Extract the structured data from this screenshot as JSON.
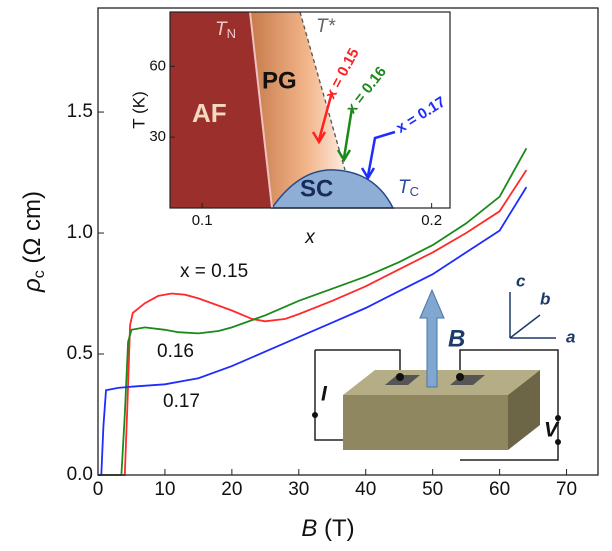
{
  "chart_data": [
    {
      "type": "line",
      "xlabel": [
        "B",
        " (T)"
      ],
      "ylabel": [
        "ρ",
        "c",
        " (Ω cm)"
      ],
      "xlim": [
        0,
        74.7
      ],
      "ylim": [
        0,
        1.93
      ],
      "xticks": [
        0,
        10,
        20,
        30,
        40,
        50,
        60,
        70
      ],
      "yticks": [
        {
          "value": 0,
          "label": "0.0"
        },
        0.5,
        {
          "value": 1,
          "label": "1.0"
        },
        1.5
      ],
      "series": [
        {
          "name": "0.15",
          "color": "#ff2a2a",
          "x": [
            0,
            4.0,
            4.4,
            4.8,
            5.2,
            7,
            9,
            11,
            13,
            15,
            18,
            20,
            23,
            25,
            28,
            30,
            35,
            40,
            45,
            50,
            55,
            60,
            64
          ],
          "values": [
            0,
            0,
            0.3,
            0.62,
            0.67,
            0.71,
            0.74,
            0.75,
            0.745,
            0.73,
            0.7,
            0.68,
            0.645,
            0.635,
            0.645,
            0.665,
            0.72,
            0.78,
            0.85,
            0.92,
            1.0,
            1.09,
            1.26
          ]
        },
        {
          "name": "0.16",
          "color": "#1a8a1a",
          "x": [
            0,
            3.5,
            4.0,
            4.5,
            5,
            7,
            10,
            12,
            15,
            18,
            20,
            25,
            30,
            35,
            40,
            45,
            50,
            55,
            60,
            64
          ],
          "values": [
            0,
            0,
            0.25,
            0.55,
            0.6,
            0.61,
            0.6,
            0.59,
            0.585,
            0.595,
            0.61,
            0.66,
            0.72,
            0.77,
            0.82,
            0.88,
            0.95,
            1.04,
            1.15,
            1.35
          ]
        },
        {
          "name": "0.17",
          "color": "#1f2cff",
          "x": [
            0,
            0.5,
            0.8,
            1.2,
            3,
            5,
            10,
            15,
            20,
            25,
            30,
            35,
            40,
            45,
            50,
            55,
            60,
            64
          ],
          "values": [
            0,
            0,
            0.2,
            0.35,
            0.36,
            0.365,
            0.375,
            0.4,
            0.45,
            0.51,
            0.57,
            0.63,
            0.69,
            0.76,
            0.83,
            0.92,
            1.01,
            1.19
          ]
        }
      ],
      "annotations": [
        "x = 0.15",
        "0.16",
        "0.17"
      ]
    },
    {
      "type": "phase-diagram",
      "xlabel": "x",
      "ylabel": "T (K)",
      "xlim": [
        0.086,
        0.208
      ],
      "ylim": [
        0,
        83
      ],
      "xticks": [
        0.1,
        0.2
      ],
      "yticks": [
        30,
        60
      ],
      "regions": [
        "AF",
        "PG",
        "SC"
      ],
      "lines": {
        "tn": [
          "T",
          "N"
        ],
        "tstar": "T*",
        "tc": [
          "T",
          "C"
        ]
      },
      "arrows": [
        "x = 0.15",
        "x = 0.16",
        "x = 0.17"
      ]
    },
    {
      "type": "schematic",
      "field": "B",
      "current": "I",
      "voltage": "V",
      "axes": [
        "a",
        "b",
        "c"
      ]
    }
  ]
}
